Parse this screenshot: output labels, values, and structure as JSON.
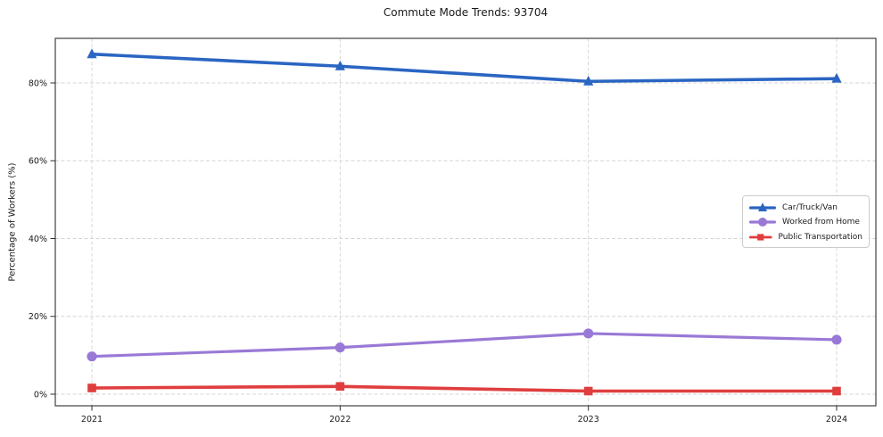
{
  "chart_data": {
    "type": "line",
    "title": "Commute Mode Trends: 93704",
    "xlabel": "",
    "ylabel": "Percentage of Workers (%)",
    "x": [
      2021,
      2022,
      2023,
      2024
    ],
    "x_tick_labels": [
      "2021",
      "2022",
      "2023",
      "2024"
    ],
    "y_ticks": [
      0,
      20,
      40,
      60,
      80
    ],
    "y_tick_labels": [
      "0%",
      "20%",
      "40%",
      "60%",
      "80%"
    ],
    "ylim": [
      -3.0,
      91.5
    ],
    "grid": true,
    "grid_style": "dashed",
    "legend_position": "center-right",
    "colors": {
      "grid": "#d4d4d4",
      "spine": "#2e2e2e",
      "text": "#1a1a1a",
      "background": "#ffffff"
    },
    "series": [
      {
        "name": "Car/Truck/Van",
        "color": "#2a65c2",
        "marker": "triangle-up",
        "line_width": 3.6,
        "values": [
          87.4,
          84.3,
          80.4,
          81.1
        ]
      },
      {
        "name": "Worked from Home",
        "color": "#9a79d6",
        "marker": "circle",
        "line_width": 3.2,
        "values": [
          9.7,
          12.0,
          15.6,
          14.0
        ]
      },
      {
        "name": "Public Transportation",
        "color": "#e03e3e",
        "marker": "square",
        "line_width": 3.6,
        "values": [
          1.6,
          2.0,
          0.8,
          0.8
        ]
      }
    ]
  }
}
